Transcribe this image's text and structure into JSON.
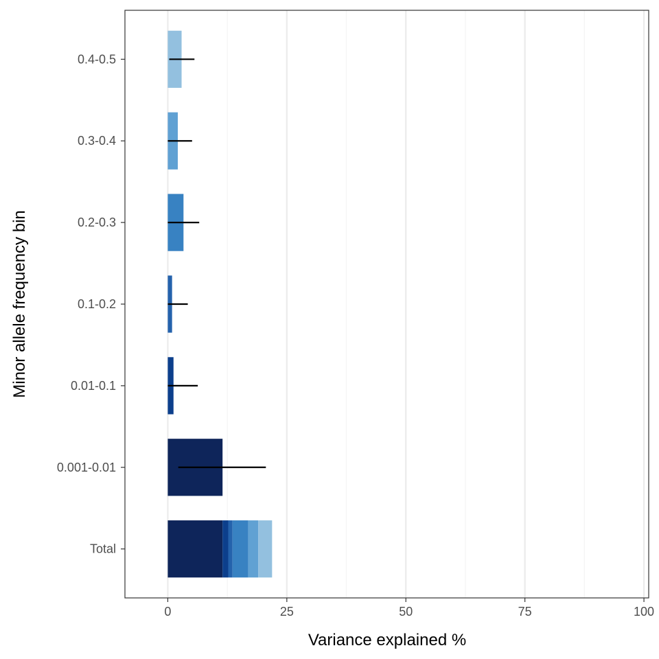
{
  "chart_data": {
    "type": "bar",
    "orientation": "horizontal",
    "xlabel": "Variance explained %",
    "ylabel": "Minor allele frequency bin",
    "xlim": [
      -9,
      101
    ],
    "x_ticks": [
      "0",
      "25",
      "50",
      "75",
      "100"
    ],
    "grid": true,
    "legend": "none",
    "categories": [
      "Total",
      "0.001-0.01",
      "0.01-0.1",
      "0.1-0.2",
      "0.2-0.3",
      "0.3-0.4",
      "0.4-0.5"
    ],
    "bars": [
      {
        "category": "0.001-0.01",
        "value": 11.5,
        "err_low": 2.2,
        "err_high": 20.6,
        "color": "#0e255a"
      },
      {
        "category": "0.01-0.1",
        "value": 1.2,
        "err_low": 0.0,
        "err_high": 6.3,
        "color": "#0c3f8c"
      },
      {
        "category": "0.1-0.2",
        "value": 0.9,
        "err_low": 0.0,
        "err_high": 4.2,
        "color": "#2462ac"
      },
      {
        "category": "0.2-0.3",
        "value": 3.3,
        "err_low": 0.0,
        "err_high": 6.6,
        "color": "#3882c2"
      },
      {
        "category": "0.3-0.4",
        "value": 2.1,
        "err_low": 0.0,
        "err_high": 5.1,
        "color": "#60a1d3"
      },
      {
        "category": "0.4-0.5",
        "value": 2.9,
        "err_low": 0.3,
        "err_high": 5.6,
        "color": "#93c0df"
      }
    ],
    "total_segments": [
      {
        "bin": "0.001-0.01",
        "value": 11.5,
        "color": "#0e255a"
      },
      {
        "bin": "0.01-0.1",
        "value": 1.2,
        "color": "#0c3f8c"
      },
      {
        "bin": "0.1-0.2",
        "value": 0.9,
        "color": "#2462ac"
      },
      {
        "bin": "0.2-0.3",
        "value": 3.3,
        "color": "#3882c2"
      },
      {
        "bin": "0.3-0.4",
        "value": 2.1,
        "color": "#60a1d3"
      },
      {
        "bin": "0.4-0.5",
        "value": 2.9,
        "color": "#93c0df"
      }
    ],
    "colors": {
      "panel_border": "#333333",
      "grid_major": "#ebebeb",
      "grid_minor": "#f4f4f4",
      "tick": "#333333",
      "tick_label": "#4d4d4d",
      "error_bar": "#000000"
    }
  }
}
